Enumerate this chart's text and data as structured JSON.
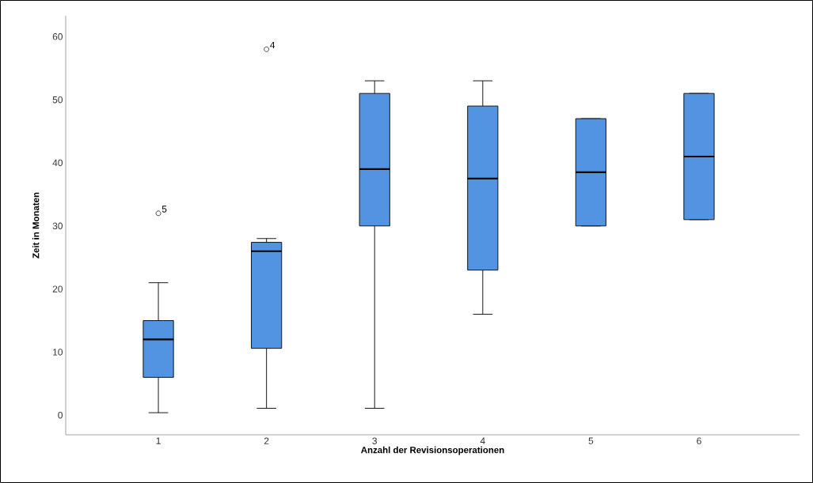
{
  "chart_data": {
    "type": "box",
    "xlabel": "Anzahl der Revisionsoperationen",
    "ylabel": "Zeit in Monaten",
    "categories": [
      "1",
      "2",
      "3",
      "4",
      "5",
      "6"
    ],
    "boxes": [
      {
        "low": 0.4,
        "q1": 6,
        "median": 12,
        "q3": 15,
        "high": 21,
        "outliers": [
          32
        ]
      },
      {
        "low": 1.1,
        "q1": 10.6,
        "median": 26,
        "q3": 27.4,
        "high": 28,
        "outliers": [
          58
        ]
      },
      {
        "low": 1.1,
        "q1": 30,
        "median": 39,
        "q3": 51,
        "high": 53
      },
      {
        "low": 16,
        "q1": 23,
        "median": 37.5,
        "q3": 49,
        "high": 53
      },
      {
        "low": 30,
        "q1": 30,
        "median": 38.5,
        "q3": 47,
        "high": 47
      },
      {
        "low": 31,
        "q1": 31,
        "median": 41,
        "q3": 51,
        "high": 51
      }
    ],
    "color": "#5294e2",
    "ylim": [
      -3.1,
      63.3
    ],
    "yticks": [
      0,
      10,
      20,
      30,
      40,
      50,
      60
    ],
    "annotations": [
      "5",
      "4"
    ],
    "grid": false
  }
}
